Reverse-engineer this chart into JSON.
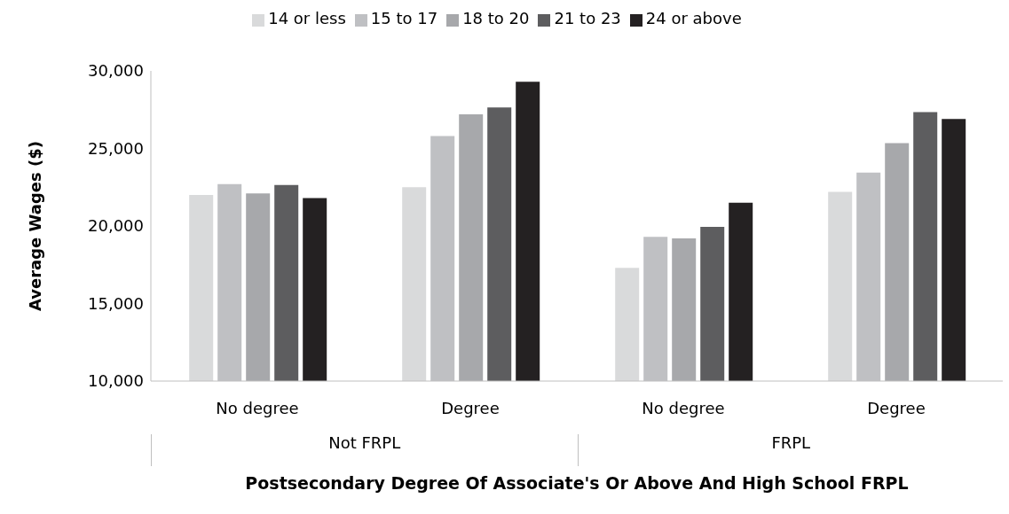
{
  "chart_data": {
    "type": "bar",
    "xlabel": "Postsecondary Degree Of Associate's Or Above And High School FRPL",
    "ylabel": "Average Wages ($)",
    "categories": [
      "No degree",
      "Degree",
      "No degree",
      "Degree"
    ],
    "annotations": [
      "Not FRPL",
      "FRPL"
    ],
    "series": [
      {
        "name": "14 or less",
        "color": "#d9dadb",
        "values": [
          22000,
          22500,
          17300,
          22200
        ]
      },
      {
        "name": "15 to 17",
        "color": "#bfc0c3",
        "values": [
          22700,
          25800,
          19300,
          23450
        ]
      },
      {
        "name": "18 to 20",
        "color": "#a7a8ab",
        "values": [
          22100,
          27200,
          19200,
          25350
        ]
      },
      {
        "name": "21 to 23",
        "color": "#5d5d5f",
        "values": [
          22650,
          27650,
          19950,
          27350
        ]
      },
      {
        "name": "24 or above",
        "color": "#242122",
        "values": [
          21800,
          29300,
          21500,
          26900
        ]
      }
    ],
    "ylim": [
      10000,
      30000
    ],
    "yticks": [
      {
        "value": 10000,
        "label": "10,000"
      },
      {
        "value": 15000,
        "label": "15,000"
      },
      {
        "value": 20000,
        "label": "20,000"
      },
      {
        "value": 25000,
        "label": "25,000"
      },
      {
        "value": 30000,
        "label": "30,000"
      }
    ],
    "legend": "top"
  }
}
